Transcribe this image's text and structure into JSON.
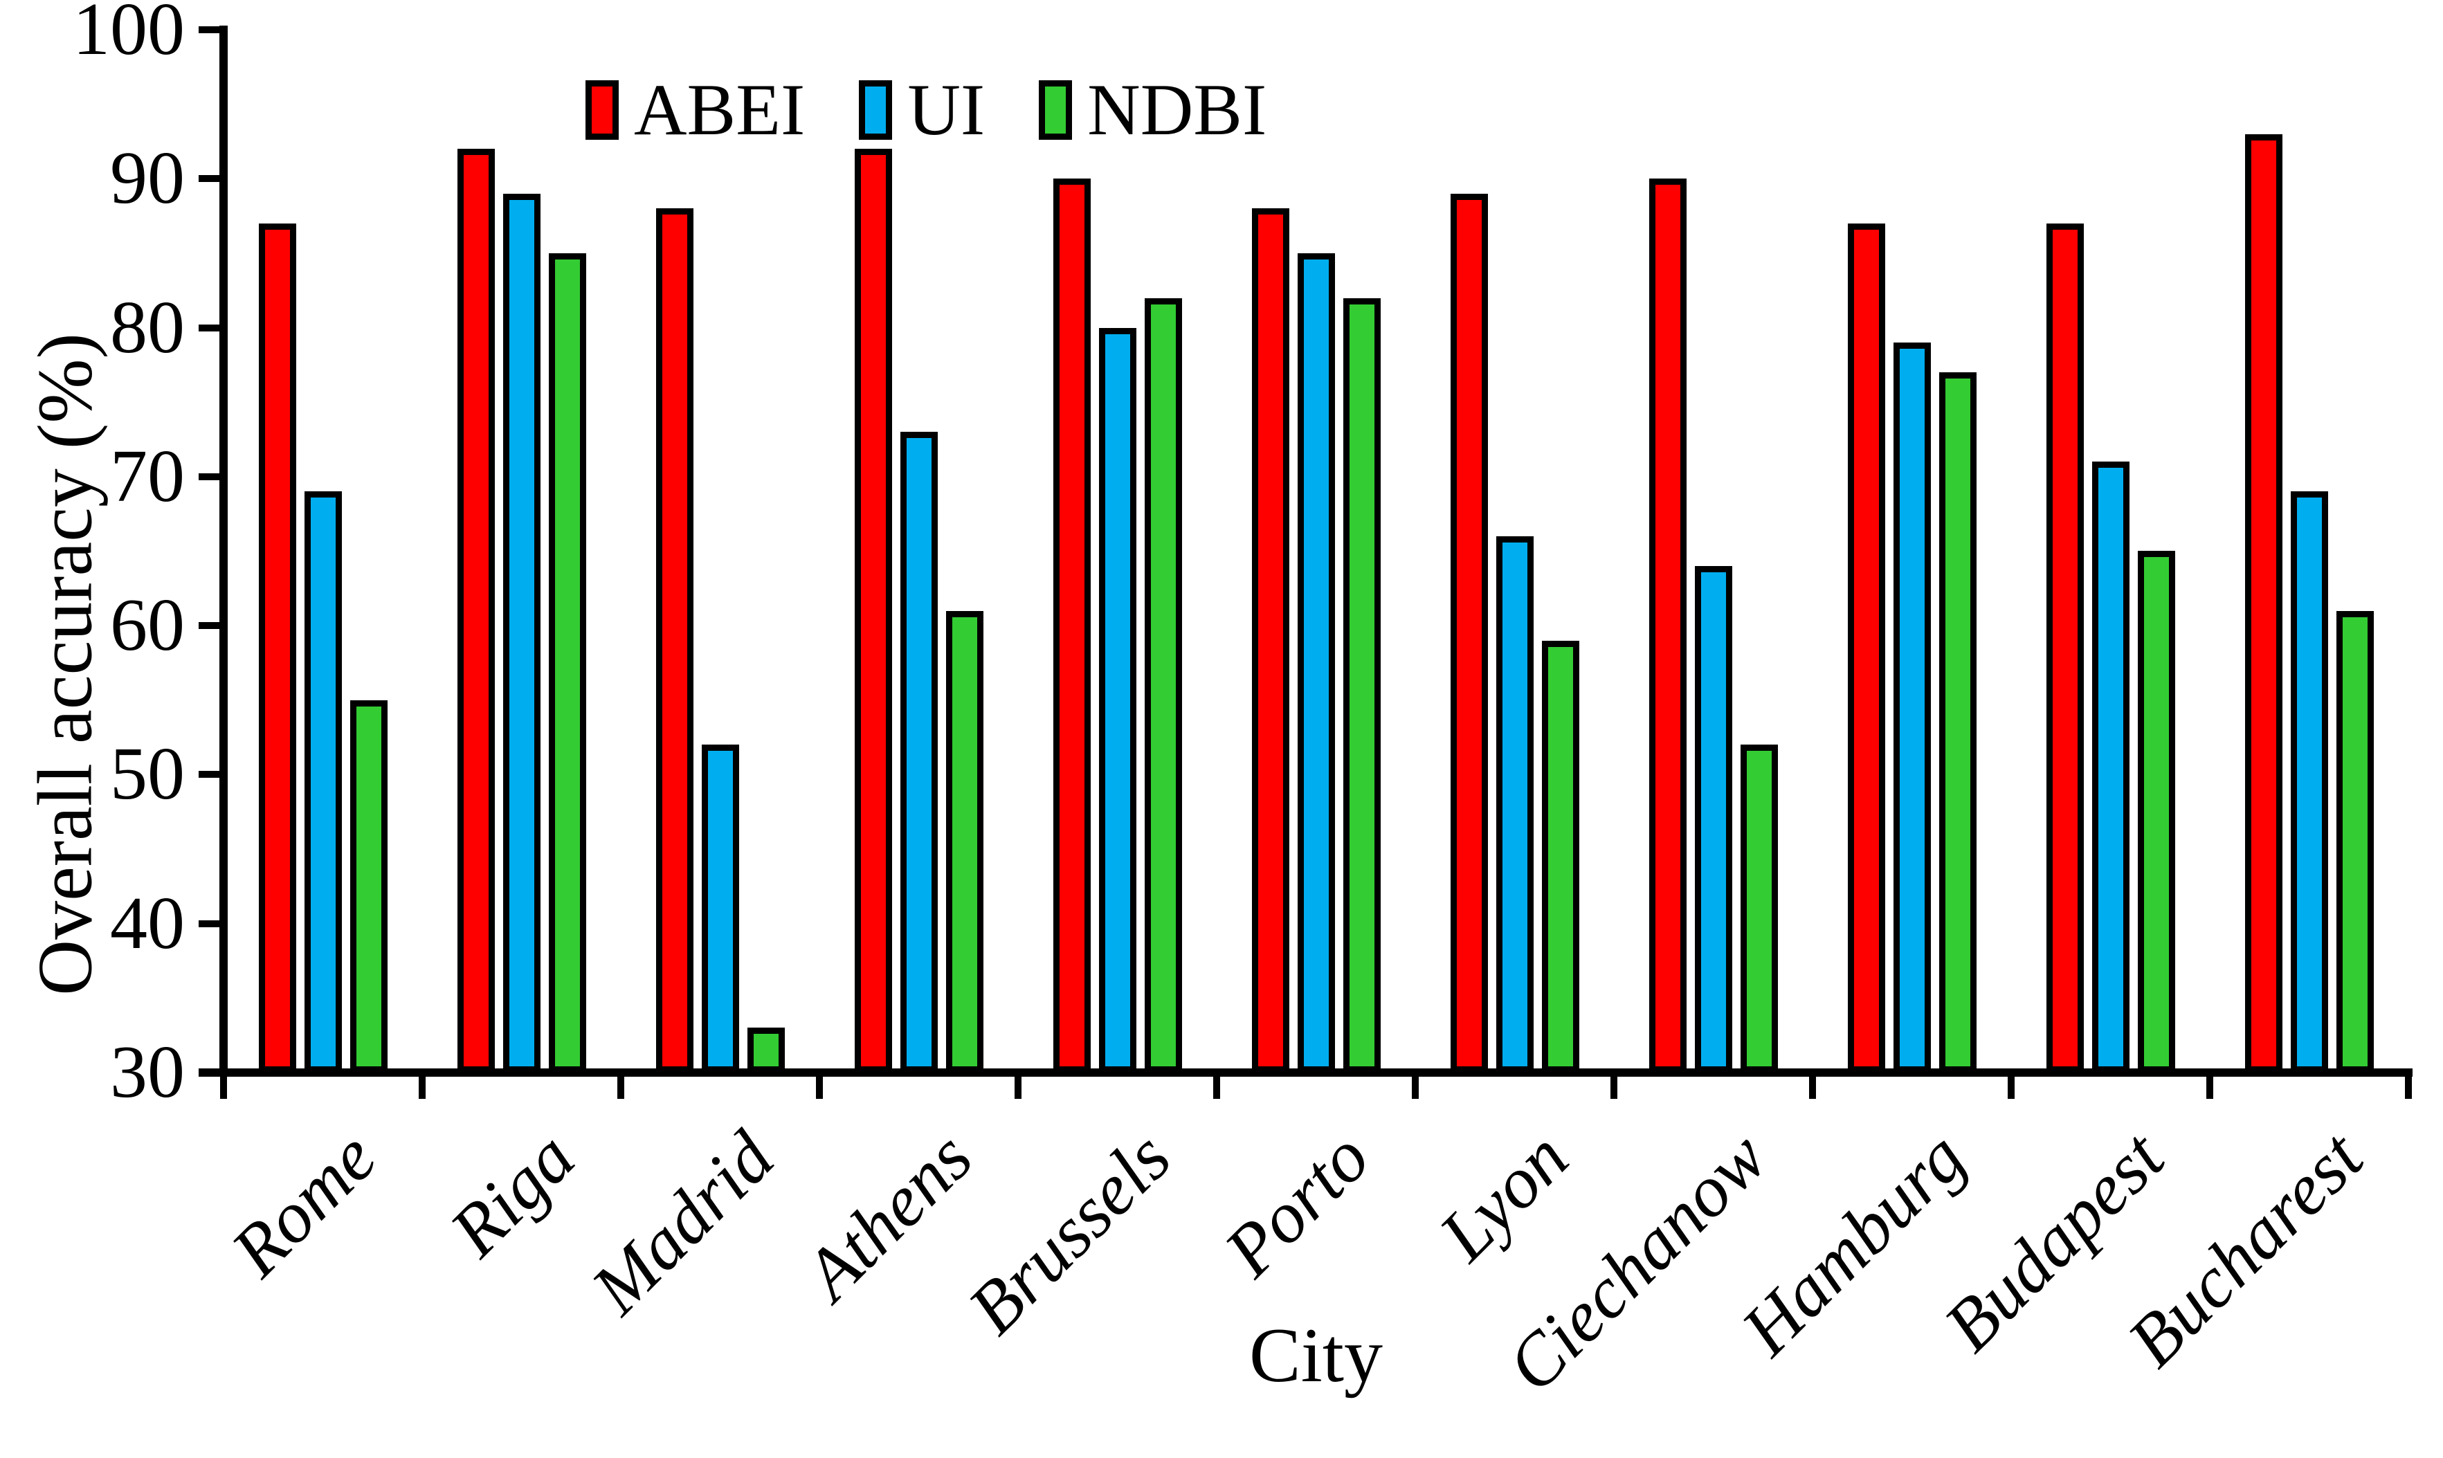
{
  "chart_data": {
    "type": "bar",
    "title": "",
    "categories": [
      "Rome",
      "Riga",
      "Madrid",
      "Athens",
      "Brussels",
      "Porto",
      "Lyon",
      "Ciechanow",
      "Hamburg",
      "Budapest",
      "Bucharest"
    ],
    "series": [
      {
        "name": "ABEI",
        "color": "#FF0000",
        "values": [
          87,
          92,
          88,
          92,
          90,
          88,
          89,
          90,
          87,
          87,
          93
        ]
      },
      {
        "name": "UI",
        "color": "#00AEEF",
        "values": [
          69,
          89,
          52,
          73,
          80,
          85,
          66,
          64,
          79,
          71,
          69
        ]
      },
      {
        "name": "NDBI",
        "color": "#33CC33",
        "values": [
          55,
          85,
          33,
          61,
          82,
          82,
          59,
          52,
          77,
          65,
          61
        ]
      }
    ],
    "xlabel": "City",
    "ylabel": "Overall accuracy (%)",
    "ylim": [
      30,
      100
    ],
    "yticks": [
      30,
      40,
      50,
      60,
      70,
      80,
      90,
      100
    ],
    "legend_position": "top-center",
    "grid": false,
    "bar_border_color": "#000000",
    "axis_color": "#000000",
    "background": "#FFFFFF"
  }
}
